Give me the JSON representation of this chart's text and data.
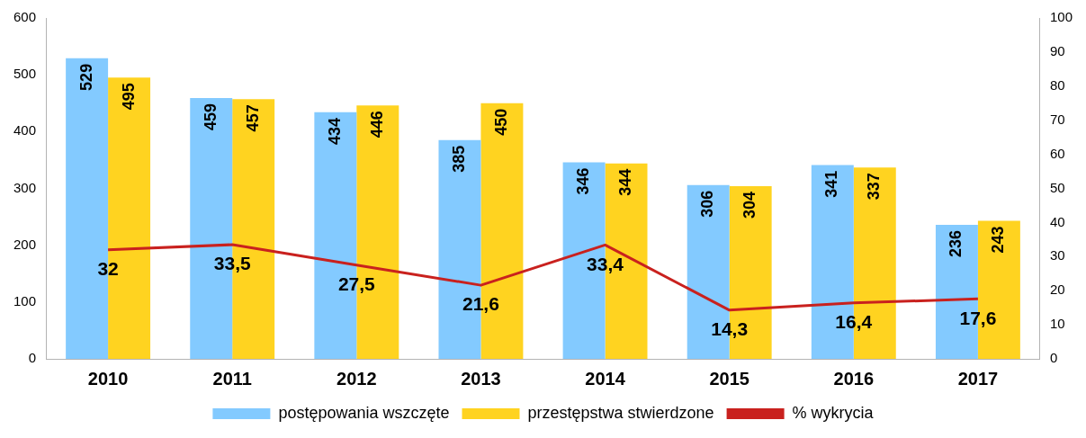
{
  "chart_data": {
    "type": "bar",
    "categories": [
      "2010",
      "2011",
      "2012",
      "2013",
      "2014",
      "2015",
      "2016",
      "2017"
    ],
    "series": [
      {
        "name": "postępowania wszczęte",
        "color": "#83caff",
        "values": [
          529,
          459,
          434,
          385,
          346,
          306,
          341,
          236
        ],
        "value_labels": [
          "529",
          "459",
          "434",
          "385",
          "346",
          "306",
          "341",
          "236"
        ]
      },
      {
        "name": "przestępstwa stwierdzone",
        "color": "#ffd320",
        "values": [
          495,
          457,
          446,
          450,
          344,
          304,
          337,
          243
        ],
        "value_labels": [
          "495",
          "457",
          "446",
          "450",
          "344",
          "304",
          "337",
          "243"
        ]
      },
      {
        "name": "% wykrycia",
        "type": "line",
        "axis": "y2",
        "color": "#c9211e",
        "marker": "none",
        "values": [
          32,
          33.5,
          27.5,
          21.6,
          33.4,
          14.3,
          16.4,
          17.6
        ],
        "value_labels": [
          "32",
          "33,5",
          "27,5",
          "21,6",
          "33,4",
          "14,3",
          "16,4",
          "17,6"
        ]
      }
    ],
    "ylim": [
      0,
      600
    ],
    "yticks": [
      0,
      100,
      200,
      300,
      400,
      500,
      600
    ],
    "y2lim": [
      0,
      100
    ],
    "y2ticks": [
      0,
      10,
      20,
      30,
      40,
      50,
      60,
      70,
      80,
      90,
      100
    ],
    "grid": false,
    "legend": "bottom"
  }
}
